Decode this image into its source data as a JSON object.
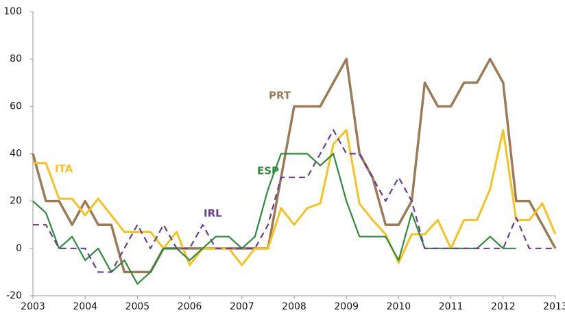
{
  "chart_data": {
    "type": "line",
    "x": [
      2003,
      2003.25,
      2003.5,
      2003.75,
      2004,
      2004.25,
      2004.5,
      2004.75,
      2005,
      2005.25,
      2005.5,
      2005.75,
      2006,
      2006.25,
      2006.5,
      2006.75,
      2007,
      2007.25,
      2007.5,
      2007.75,
      2008,
      2008.25,
      2008.5,
      2008.75,
      2009,
      2009.25,
      2009.5,
      2009.75,
      2010,
      2010.25,
      2010.5,
      2010.75,
      2011,
      2011.25,
      2011.5,
      2011.75,
      2012,
      2012.25,
      2012.5,
      2012.75,
      2013
    ],
    "xlim": [
      2003,
      2013
    ],
    "xticks": [
      2003,
      2004,
      2005,
      2006,
      2007,
      2008,
      2009,
      2010,
      2011,
      2012,
      2013
    ],
    "ylim": [
      -20,
      100
    ],
    "yticks": [
      -20,
      0,
      20,
      40,
      60,
      80,
      100
    ],
    "grid": false,
    "series": [
      {
        "name": "PRT",
        "color": "#9c7a55",
        "linestyle": "solid",
        "values": [
          40,
          20,
          20,
          10,
          20,
          10,
          10,
          -10,
          -10,
          -10,
          0,
          0,
          0,
          0,
          0,
          0,
          0,
          0,
          0,
          30,
          60,
          60,
          60,
          70,
          80,
          40,
          30,
          10,
          10,
          20,
          70,
          60,
          60,
          70,
          70,
          80,
          70,
          20,
          20,
          10,
          0
        ]
      },
      {
        "name": "ITA",
        "color": "#f8c21c",
        "linestyle": "solid",
        "values": [
          36,
          36,
          21,
          21,
          14,
          21,
          14,
          7,
          7,
          7,
          0,
          7,
          -7,
          0,
          0,
          0,
          -7,
          0,
          0,
          17,
          10,
          17,
          19,
          44,
          50,
          19,
          12,
          6,
          -6,
          6,
          6,
          12,
          0,
          12,
          12,
          25,
          50,
          12,
          12,
          19,
          6
        ]
      },
      {
        "name": "ESP",
        "color": "#2e8b3c",
        "linestyle": "solid",
        "values": [
          20,
          15,
          0,
          5,
          -5,
          0,
          -10,
          -5,
          -15,
          -10,
          0,
          0,
          -5,
          0,
          5,
          5,
          0,
          5,
          25,
          40,
          40,
          40,
          35,
          40,
          20,
          5,
          5,
          5,
          -5,
          15,
          0,
          0,
          0,
          0,
          0,
          5,
          0,
          0,
          null,
          null,
          null
        ]
      },
      {
        "name": "IRL",
        "color": "#6b3d8e",
        "linestyle": "dashed",
        "values": [
          10,
          10,
          0,
          0,
          0,
          -10,
          -10,
          0,
          10,
          0,
          10,
          0,
          0,
          10,
          0,
          0,
          0,
          0,
          10,
          30,
          30,
          30,
          40,
          50,
          40,
          40,
          30,
          20,
          30,
          20,
          0,
          0,
          0,
          0,
          0,
          0,
          0,
          13,
          0,
          0,
          0
        ]
      }
    ]
  }
}
